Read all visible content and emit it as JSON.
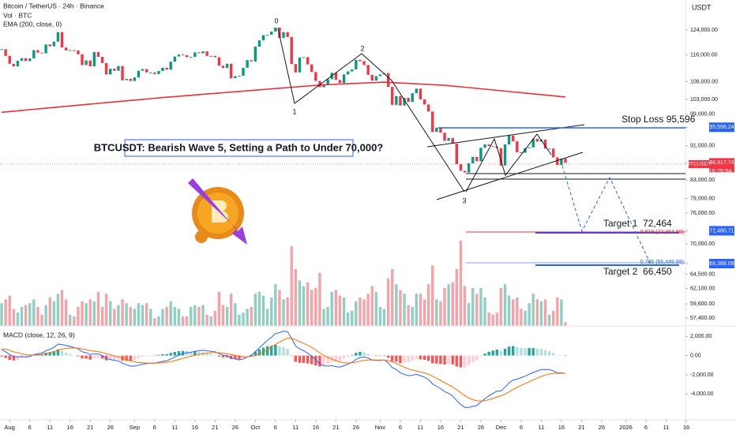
{
  "header": {
    "symbol": "Bitcoin / TetherUS · 24h · Binance",
    "currency": "USDT"
  },
  "annotations": {
    "title": "BTCUSDT: Bearish Wave 5, Setting a Path to Under 70,000?",
    "stop_loss": "Stop Loss 95,596",
    "target_1": "Target 1  72,464",
    "target_2": "Target 2  66,450",
    "fib": [
      "0.618 (72,464.89)",
      "0.786 (66,449.89)"
    ],
    "wave_labels": [
      "0",
      "1",
      "2",
      "3"
    ],
    "ticker": "BTCUSDT",
    "countdown": "16:25:54"
  },
  "chart_data": [
    {
      "type": "candlestick",
      "log_scale": true,
      "up_color": "#089981",
      "down_color": "#f23645",
      "values": [
        117800,
        115700,
        113300,
        112500,
        114200,
        115000,
        114100,
        114900,
        117500,
        116700,
        116500,
        119300,
        118700,
        120200,
        123300,
        118300,
        117400,
        117500,
        117400,
        116200,
        112900,
        114300,
        112500,
        116900,
        115400,
        113500,
        110100,
        111800,
        111200,
        112600,
        108400,
        108800,
        108200,
        109200,
        111200,
        111700,
        110700,
        110700,
        110200,
        111100,
        112100,
        111500,
        113900,
        115500,
        116100,
        115900,
        115300,
        115400,
        116800,
        116500,
        117100,
        115700,
        115700,
        115300,
        112700,
        112000,
        113300,
        109000,
        109600,
        109700,
        112100,
        114400,
        114000,
        118600,
        120600,
        122300,
        122400,
        123500,
        124800,
        121400,
        123300,
        121700,
        113200,
        110700,
        115200,
        115300,
        113100,
        110800,
        108200,
        106400,
        107200,
        108700,
        110600,
        108500,
        107600,
        110100,
        111000,
        111600,
        114500,
        114100,
        112900,
        110000,
        108300,
        109600,
        110100,
        110500,
        106500,
        101500,
        103900,
        101300,
        103400,
        102300,
        104700,
        106000,
        103000,
        101600,
        99700,
        94400,
        95500,
        94200,
        92200,
        92900,
        91500,
        86600,
        85100,
        84700,
        86800,
        88300,
        87300,
        90500,
        91300,
        90900,
        90800,
        90400,
        86300,
        91300,
        93500,
        92100,
        89400,
        89300,
        90400,
        90600,
        92700,
        92000,
        92500,
        90300,
        90300,
        88200,
        86400,
        87900,
        86917.74
      ],
      "ema": {
        "label": "EMA (200, close, 0)",
        "color": "#e5323b",
        "values": [
          99500,
          99600,
          99700,
          99800,
          99900,
          100000,
          100100,
          100200,
          100300,
          100400,
          100500,
          100600,
          100700,
          100800,
          100900,
          101000,
          101100,
          101200,
          101300,
          101400,
          101500,
          101600,
          101700,
          101800,
          101900,
          102000,
          102100,
          102200,
          102300,
          102400,
          102500,
          102600,
          102700,
          102800,
          102900,
          103000,
          103100,
          103200,
          103300,
          103400,
          103500,
          103590,
          103680,
          103770,
          103860,
          103950,
          104040,
          104130,
          104220,
          104310,
          104400,
          104490,
          104580,
          104670,
          104760,
          104850,
          104940,
          105030,
          105120,
          105210,
          105300,
          105390,
          105480,
          105570,
          105660,
          105750,
          105840,
          105930,
          106020,
          106110,
          106200,
          106290,
          106380,
          106470,
          106560,
          106650,
          106740,
          106830,
          106920,
          107010,
          107100,
          107150,
          107200,
          107250,
          107300,
          107350,
          107400,
          107450,
          107500,
          107550,
          107600,
          107650,
          107700,
          107750,
          107800,
          107850,
          107790,
          107730,
          107670,
          107610,
          107550,
          107490,
          107430,
          107370,
          107310,
          107250,
          107190,
          107130,
          107070,
          107010,
          106950,
          106840,
          106730,
          106620,
          106510,
          106400,
          106290,
          106180,
          106070,
          105960,
          105850,
          105740,
          105630,
          105520,
          105410,
          105300,
          105190,
          105080,
          104970,
          104860,
          104750,
          104640,
          104530,
          104420,
          104310,
          104200,
          104090,
          103980,
          103870,
          103760,
          103650
        ]
      },
      "xlim": [
        -0.4,
        169.8
      ],
      "xticks": [
        {
          "value": 2,
          "label": "Aug"
        },
        {
          "value": 7,
          "label": "6"
        },
        {
          "value": 12,
          "label": "11"
        },
        {
          "value": 17,
          "label": "16"
        },
        {
          "value": 22,
          "label": "21"
        },
        {
          "value": 27,
          "label": "26"
        },
        {
          "value": 33,
          "label": "Sep"
        },
        {
          "value": 38,
          "label": "6"
        },
        {
          "value": 43,
          "label": "11"
        },
        {
          "value": 48,
          "label": "16"
        },
        {
          "value": 53,
          "label": "21"
        },
        {
          "value": 58,
          "label": "26"
        },
        {
          "value": 63,
          "label": "Oct"
        },
        {
          "value": 68,
          "label": "6"
        },
        {
          "value": 73,
          "label": "11"
        },
        {
          "value": 78,
          "label": "16"
        },
        {
          "value": 83,
          "label": "21"
        },
        {
          "value": 88,
          "label": "26"
        },
        {
          "value": 94,
          "label": "Nov"
        },
        {
          "value": 99,
          "label": "6"
        },
        {
          "value": 104,
          "label": "11"
        },
        {
          "value": 109,
          "label": "16"
        },
        {
          "value": 114,
          "label": "21"
        },
        {
          "value": 119,
          "label": "26"
        },
        {
          "value": 124,
          "label": "Dec"
        },
        {
          "value": 129,
          "label": "6"
        },
        {
          "value": 134,
          "label": "11"
        },
        {
          "value": 139,
          "label": "16"
        },
        {
          "value": 144,
          "label": "21"
        },
        {
          "value": 149,
          "label": "26"
        },
        {
          "value": 155,
          "label": "2026"
        },
        {
          "value": 160,
          "label": "6"
        },
        {
          "value": 165,
          "label": "11"
        },
        {
          "value": 170,
          "label": "16"
        }
      ],
      "ylim": [
        56200,
        128800
      ],
      "yticks": [
        {
          "value": 124000,
          "label": "124,000.00"
        },
        {
          "value": 116000,
          "label": "116,000.00"
        },
        {
          "value": 108000,
          "label": "108,000.00"
        },
        {
          "value": 103000,
          "label": "103,000.00"
        },
        {
          "value": 99000,
          "label": "99,000.00"
        },
        {
          "value": 95596.24,
          "label": "95,596.24",
          "color": "#2962ff"
        },
        {
          "value": 91000,
          "label": "91,000.00"
        },
        {
          "value": 86917.74,
          "label": "86,917.74",
          "color": "#f23645"
        },
        {
          "value": 83000,
          "label": "83,000.00"
        },
        {
          "value": 79000,
          "label": "79,000.00"
        },
        {
          "value": 76000,
          "label": "76,000.00"
        },
        {
          "value": 72480.71,
          "label": "72,480.71",
          "color": "#2962ff"
        },
        {
          "value": 70000,
          "label": "70,000.00"
        },
        {
          "value": 66388.09,
          "label": "66,388.09",
          "color": "#2962ff"
        },
        {
          "value": 64500,
          "label": "64,500.00"
        },
        {
          "value": 62100,
          "label": "62,100.00"
        },
        {
          "value": 59600,
          "label": "59,600.00"
        },
        {
          "value": 57400,
          "label": "57,400.00"
        }
      ]
    },
    {
      "type": "bar",
      "label": "Vol · BTC",
      "ylim": [
        0,
        50
      ],
      "up_color": "#8fcfc2",
      "down_color": "#f5a3a8",
      "values": [
        12,
        14,
        16,
        9,
        7,
        10,
        11,
        12,
        14,
        10,
        6,
        11,
        15,
        13,
        17,
        19,
        14,
        6,
        5,
        10,
        13,
        12,
        14,
        13,
        18,
        10,
        17,
        13,
        9,
        11,
        14,
        12,
        10,
        9,
        12,
        11,
        12,
        9,
        4,
        5,
        9,
        10,
        13,
        10,
        9,
        5,
        5,
        10,
        11,
        10,
        11,
        6,
        5,
        8,
        18,
        11,
        10,
        17,
        12,
        6,
        7,
        9,
        10,
        17,
        18,
        16,
        9,
        15,
        22,
        19,
        14,
        15,
        42,
        30,
        24,
        21,
        23,
        19,
        20,
        28,
        9,
        10,
        18,
        19,
        16,
        15,
        7,
        8,
        13,
        15,
        14,
        17,
        21,
        18,
        10,
        9,
        25,
        30,
        22,
        19,
        17,
        11,
        10,
        17,
        17,
        14,
        22,
        32,
        14,
        13,
        20,
        22,
        23,
        30,
        45,
        21,
        12,
        20,
        17,
        20,
        15,
        7,
        6,
        7,
        20,
        22,
        16,
        14,
        15,
        9,
        8,
        12,
        17,
        14,
        13,
        14,
        6,
        8,
        15,
        14,
        2
      ]
    },
    {
      "type": "macd",
      "label": "MACD (close, 12, 26, 9)",
      "ylim": [
        -6700,
        2850
      ],
      "yticks": [
        {
          "value": 2000,
          "label": "2,000.00"
        },
        {
          "value": 0,
          "label": "0.00"
        },
        {
          "value": -2000,
          "label": "-2,000.00"
        },
        {
          "value": -4000,
          "label": "-4,000.00"
        }
      ],
      "histogram": {
        "colors": [
          "#26a69a",
          "#b2dfdb",
          "#ff5252",
          "#ffcdd2"
        ],
        "values": [
          -100,
          -250,
          -450,
          -500,
          -450,
          -300,
          -250,
          -150,
          50,
          120,
          140,
          310,
          370,
          460,
          650,
          480,
          300,
          160,
          50,
          -80,
          -300,
          -320,
          -420,
          -260,
          -250,
          -320,
          -500,
          -480,
          -460,
          -410,
          -530,
          -550,
          -560,
          -450,
          -280,
          -140,
          -70,
          -10,
          -10,
          70,
          140,
          150,
          280,
          380,
          460,
          490,
          470,
          420,
          420,
          380,
          350,
          240,
          150,
          80,
          -100,
          -200,
          -200,
          -360,
          -370,
          -380,
          -220,
          -20,
          100,
          400,
          640,
          830,
          980,
          1020,
          1140,
          990,
          910,
          690,
          -10,
          -650,
          -760,
          -770,
          -820,
          -900,
          -1040,
          -1150,
          -1080,
          -900,
          -680,
          -620,
          -540,
          -310,
          -130,
          60,
          290,
          390,
          350,
          200,
          0,
          -40,
          -40,
          10,
          -230,
          -590,
          -630,
          -790,
          -750,
          -720,
          -540,
          -350,
          -400,
          -440,
          -550,
          -800,
          -840,
          -870,
          -930,
          -900,
          -920,
          -1140,
          -1230,
          -1220,
          -980,
          -700,
          -480,
          -100,
          200,
          400,
          520,
          620,
          500,
          720,
          940,
          990,
          870,
          810,
          770,
          780,
          780,
          750,
          720,
          580,
          470,
          260,
          50,
          40,
          -10
        ]
      },
      "series": [
        {
          "color": "#2962ff",
          "values": [
            600,
            400,
            100,
            -100,
            -150,
            -100,
            -150,
            -100,
            100,
            200,
            250,
            500,
            650,
            850,
            1200,
            1150,
            1050,
            950,
            850,
            700,
            400,
            300,
            100,
            200,
            150,
            0,
            -300,
            -400,
            -500,
            -550,
            -800,
            -950,
            -1100,
            -1100,
            -1000,
            -900,
            -850,
            -800,
            -800,
            -700,
            -600,
            -550,
            -350,
            -150,
            50,
            200,
            300,
            350,
            450,
            500,
            550,
            500,
            450,
            400,
            200,
            50,
            0,
            -250,
            -350,
            -450,
            -350,
            -150,
            0,
            400,
            800,
            1200,
            1600,
            1900,
            2300,
            2400,
            2550,
            2500,
            1800,
            1000,
            700,
            500,
            250,
            -50,
            -450,
            -850,
            -1050,
            -1100,
            -1050,
            -1150,
            -1200,
            -1050,
            -900,
            -700,
            -400,
            -200,
            -150,
            -250,
            -450,
            -500,
            -500,
            -450,
            -750,
            -1250,
            -1450,
            -1800,
            -1950,
            -2100,
            -2050,
            -1950,
            -2100,
            -2250,
            -2500,
            -2950,
            -3200,
            -3450,
            -3750,
            -3950,
            -4200,
            -4700,
            -5100,
            -5400,
            -5400,
            -5300,
            -5200,
            -4850,
            -4500,
            -4200,
            -3950,
            -3700,
            -3700,
            -3300,
            -2850,
            -2550,
            -2450,
            -2300,
            -2150,
            -1950,
            -1750,
            -1600,
            -1450,
            -1450,
            -1450,
            -1600,
            -1800,
            -1800,
            -1850
          ]
        },
        {
          "color": "#ff6d00",
          "values": [
            700,
            650,
            550,
            400,
            300,
            200,
            100,
            50,
            50,
            80,
            110,
            190,
            280,
            390,
            550,
            670,
            750,
            790,
            800,
            780,
            700,
            620,
            520,
            460,
            400,
            320,
            200,
            80,
            -40,
            -140,
            -270,
            -400,
            -540,
            -650,
            -720,
            -760,
            -780,
            -790,
            -790,
            -770,
            -740,
            -700,
            -630,
            -530,
            -410,
            -290,
            -170,
            -70,
            30,
            120,
            200,
            260,
            300,
            320,
            300,
            250,
            200,
            110,
            20,
            -70,
            -130,
            -130,
            -100,
            0,
            160,
            370,
            620,
            880,
            1160,
            1410,
            1640,
            1810,
            1810,
            1650,
            1460,
            1270,
            1070,
            850,
            590,
            300,
            30,
            -200,
            -370,
            -530,
            -660,
            -740,
            -770,
            -760,
            -690,
            -590,
            -500,
            -450,
            -450,
            -460,
            -460,
            -460,
            -520,
            -660,
            -820,
            -1010,
            -1200,
            -1380,
            -1510,
            -1600,
            -1700,
            -1810,
            -1950,
            -2150,
            -2360,
            -2580,
            -2820,
            -3050,
            -3280,
            -3560,
            -3870,
            -4180,
            -4420,
            -4600,
            -4720,
            -4750,
            -4700,
            -4600,
            -4470,
            -4320,
            -4200,
            -4020,
            -3790,
            -3540,
            -3320,
            -3110,
            -2920,
            -2730,
            -2530,
            -2350,
            -2170,
            -2030,
            -1920,
            -1860,
            -1850,
            -1840,
            -1840
          ]
        }
      ]
    }
  ]
}
